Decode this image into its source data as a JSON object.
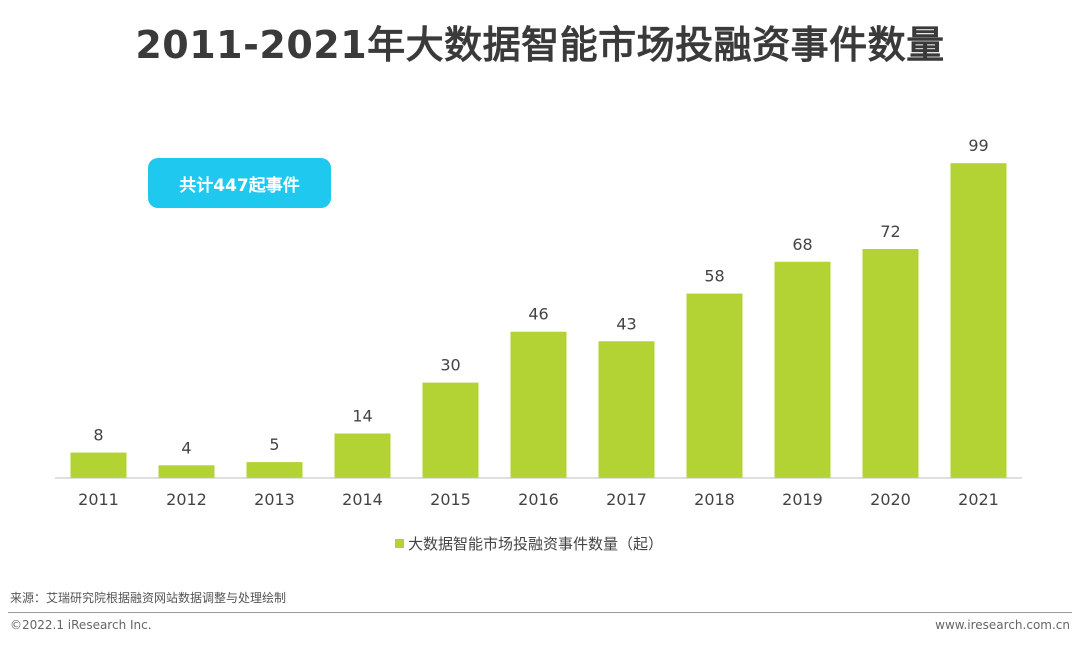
{
  "title": "2011-2021年大数据智能市场投融资事件数量",
  "badge": "共计447起事件",
  "source": "来源：艾瑞研究院根据融资网站数据调整与处理绘制",
  "copyright": "©2022.1 iResearch Inc.",
  "website": "www.iresearch.com.cn",
  "chart_data": {
    "type": "bar",
    "categories": [
      "2011",
      "2012",
      "2013",
      "2014",
      "2015",
      "2016",
      "2017",
      "2018",
      "2019",
      "2020",
      "2021"
    ],
    "series": [
      {
        "name": "大数据智能市场投融资事件数量（起）",
        "values": [
          8,
          4,
          5,
          14,
          30,
          46,
          43,
          58,
          68,
          72,
          99
        ]
      }
    ],
    "legend_position": "bottom",
    "grid": false,
    "ylim": [
      0,
      100
    ],
    "color": "#b3d334"
  }
}
